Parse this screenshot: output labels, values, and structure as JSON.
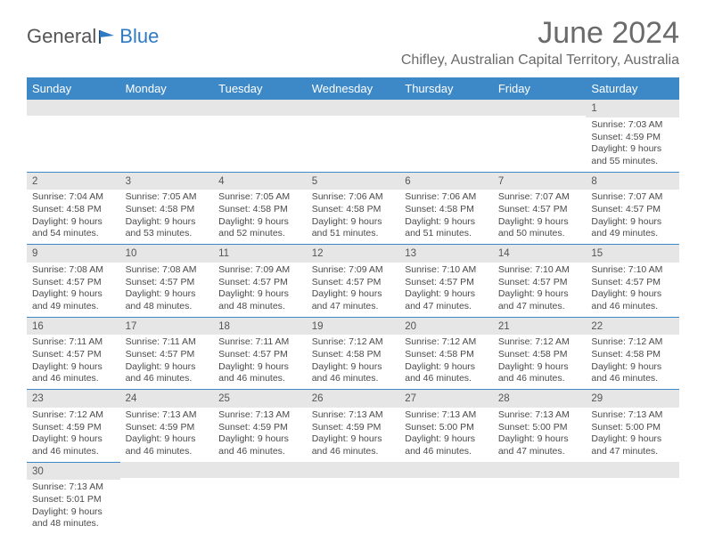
{
  "logo": {
    "text1": "General",
    "text2": "Blue"
  },
  "title": "June 2024",
  "location": "Chifley, Australian Capital Territory, Australia",
  "colors": {
    "header_bg": "#3d89c8",
    "header_text": "#ffffff",
    "daynum_bg": "#e6e6e6",
    "cell_border": "#3d89c8",
    "body_text": "#4a4a4a",
    "title_text": "#6a6a6a",
    "logo_gray": "#555555",
    "logo_blue": "#2f7ac4"
  },
  "day_headers": [
    "Sunday",
    "Monday",
    "Tuesday",
    "Wednesday",
    "Thursday",
    "Friday",
    "Saturday"
  ],
  "weeks": [
    [
      {
        "n": "",
        "sr": "",
        "ss": "",
        "d1": "",
        "d2": ""
      },
      {
        "n": "",
        "sr": "",
        "ss": "",
        "d1": "",
        "d2": ""
      },
      {
        "n": "",
        "sr": "",
        "ss": "",
        "d1": "",
        "d2": ""
      },
      {
        "n": "",
        "sr": "",
        "ss": "",
        "d1": "",
        "d2": ""
      },
      {
        "n": "",
        "sr": "",
        "ss": "",
        "d1": "",
        "d2": ""
      },
      {
        "n": "",
        "sr": "",
        "ss": "",
        "d1": "",
        "d2": ""
      },
      {
        "n": "1",
        "sr": "Sunrise: 7:03 AM",
        "ss": "Sunset: 4:59 PM",
        "d1": "Daylight: 9 hours",
        "d2": "and 55 minutes."
      }
    ],
    [
      {
        "n": "2",
        "sr": "Sunrise: 7:04 AM",
        "ss": "Sunset: 4:58 PM",
        "d1": "Daylight: 9 hours",
        "d2": "and 54 minutes."
      },
      {
        "n": "3",
        "sr": "Sunrise: 7:05 AM",
        "ss": "Sunset: 4:58 PM",
        "d1": "Daylight: 9 hours",
        "d2": "and 53 minutes."
      },
      {
        "n": "4",
        "sr": "Sunrise: 7:05 AM",
        "ss": "Sunset: 4:58 PM",
        "d1": "Daylight: 9 hours",
        "d2": "and 52 minutes."
      },
      {
        "n": "5",
        "sr": "Sunrise: 7:06 AM",
        "ss": "Sunset: 4:58 PM",
        "d1": "Daylight: 9 hours",
        "d2": "and 51 minutes."
      },
      {
        "n": "6",
        "sr": "Sunrise: 7:06 AM",
        "ss": "Sunset: 4:58 PM",
        "d1": "Daylight: 9 hours",
        "d2": "and 51 minutes."
      },
      {
        "n": "7",
        "sr": "Sunrise: 7:07 AM",
        "ss": "Sunset: 4:57 PM",
        "d1": "Daylight: 9 hours",
        "d2": "and 50 minutes."
      },
      {
        "n": "8",
        "sr": "Sunrise: 7:07 AM",
        "ss": "Sunset: 4:57 PM",
        "d1": "Daylight: 9 hours",
        "d2": "and 49 minutes."
      }
    ],
    [
      {
        "n": "9",
        "sr": "Sunrise: 7:08 AM",
        "ss": "Sunset: 4:57 PM",
        "d1": "Daylight: 9 hours",
        "d2": "and 49 minutes."
      },
      {
        "n": "10",
        "sr": "Sunrise: 7:08 AM",
        "ss": "Sunset: 4:57 PM",
        "d1": "Daylight: 9 hours",
        "d2": "and 48 minutes."
      },
      {
        "n": "11",
        "sr": "Sunrise: 7:09 AM",
        "ss": "Sunset: 4:57 PM",
        "d1": "Daylight: 9 hours",
        "d2": "and 48 minutes."
      },
      {
        "n": "12",
        "sr": "Sunrise: 7:09 AM",
        "ss": "Sunset: 4:57 PM",
        "d1": "Daylight: 9 hours",
        "d2": "and 47 minutes."
      },
      {
        "n": "13",
        "sr": "Sunrise: 7:10 AM",
        "ss": "Sunset: 4:57 PM",
        "d1": "Daylight: 9 hours",
        "d2": "and 47 minutes."
      },
      {
        "n": "14",
        "sr": "Sunrise: 7:10 AM",
        "ss": "Sunset: 4:57 PM",
        "d1": "Daylight: 9 hours",
        "d2": "and 47 minutes."
      },
      {
        "n": "15",
        "sr": "Sunrise: 7:10 AM",
        "ss": "Sunset: 4:57 PM",
        "d1": "Daylight: 9 hours",
        "d2": "and 46 minutes."
      }
    ],
    [
      {
        "n": "16",
        "sr": "Sunrise: 7:11 AM",
        "ss": "Sunset: 4:57 PM",
        "d1": "Daylight: 9 hours",
        "d2": "and 46 minutes."
      },
      {
        "n": "17",
        "sr": "Sunrise: 7:11 AM",
        "ss": "Sunset: 4:57 PM",
        "d1": "Daylight: 9 hours",
        "d2": "and 46 minutes."
      },
      {
        "n": "18",
        "sr": "Sunrise: 7:11 AM",
        "ss": "Sunset: 4:57 PM",
        "d1": "Daylight: 9 hours",
        "d2": "and 46 minutes."
      },
      {
        "n": "19",
        "sr": "Sunrise: 7:12 AM",
        "ss": "Sunset: 4:58 PM",
        "d1": "Daylight: 9 hours",
        "d2": "and 46 minutes."
      },
      {
        "n": "20",
        "sr": "Sunrise: 7:12 AM",
        "ss": "Sunset: 4:58 PM",
        "d1": "Daylight: 9 hours",
        "d2": "and 46 minutes."
      },
      {
        "n": "21",
        "sr": "Sunrise: 7:12 AM",
        "ss": "Sunset: 4:58 PM",
        "d1": "Daylight: 9 hours",
        "d2": "and 46 minutes."
      },
      {
        "n": "22",
        "sr": "Sunrise: 7:12 AM",
        "ss": "Sunset: 4:58 PM",
        "d1": "Daylight: 9 hours",
        "d2": "and 46 minutes."
      }
    ],
    [
      {
        "n": "23",
        "sr": "Sunrise: 7:12 AM",
        "ss": "Sunset: 4:59 PM",
        "d1": "Daylight: 9 hours",
        "d2": "and 46 minutes."
      },
      {
        "n": "24",
        "sr": "Sunrise: 7:13 AM",
        "ss": "Sunset: 4:59 PM",
        "d1": "Daylight: 9 hours",
        "d2": "and 46 minutes."
      },
      {
        "n": "25",
        "sr": "Sunrise: 7:13 AM",
        "ss": "Sunset: 4:59 PM",
        "d1": "Daylight: 9 hours",
        "d2": "and 46 minutes."
      },
      {
        "n": "26",
        "sr": "Sunrise: 7:13 AM",
        "ss": "Sunset: 4:59 PM",
        "d1": "Daylight: 9 hours",
        "d2": "and 46 minutes."
      },
      {
        "n": "27",
        "sr": "Sunrise: 7:13 AM",
        "ss": "Sunset: 5:00 PM",
        "d1": "Daylight: 9 hours",
        "d2": "and 46 minutes."
      },
      {
        "n": "28",
        "sr": "Sunrise: 7:13 AM",
        "ss": "Sunset: 5:00 PM",
        "d1": "Daylight: 9 hours",
        "d2": "and 47 minutes."
      },
      {
        "n": "29",
        "sr": "Sunrise: 7:13 AM",
        "ss": "Sunset: 5:00 PM",
        "d1": "Daylight: 9 hours",
        "d2": "and 47 minutes."
      }
    ],
    [
      {
        "n": "30",
        "sr": "Sunrise: 7:13 AM",
        "ss": "Sunset: 5:01 PM",
        "d1": "Daylight: 9 hours",
        "d2": "and 48 minutes."
      },
      {
        "n": "",
        "sr": "",
        "ss": "",
        "d1": "",
        "d2": ""
      },
      {
        "n": "",
        "sr": "",
        "ss": "",
        "d1": "",
        "d2": ""
      },
      {
        "n": "",
        "sr": "",
        "ss": "",
        "d1": "",
        "d2": ""
      },
      {
        "n": "",
        "sr": "",
        "ss": "",
        "d1": "",
        "d2": ""
      },
      {
        "n": "",
        "sr": "",
        "ss": "",
        "d1": "",
        "d2": ""
      },
      {
        "n": "",
        "sr": "",
        "ss": "",
        "d1": "",
        "d2": ""
      }
    ]
  ]
}
